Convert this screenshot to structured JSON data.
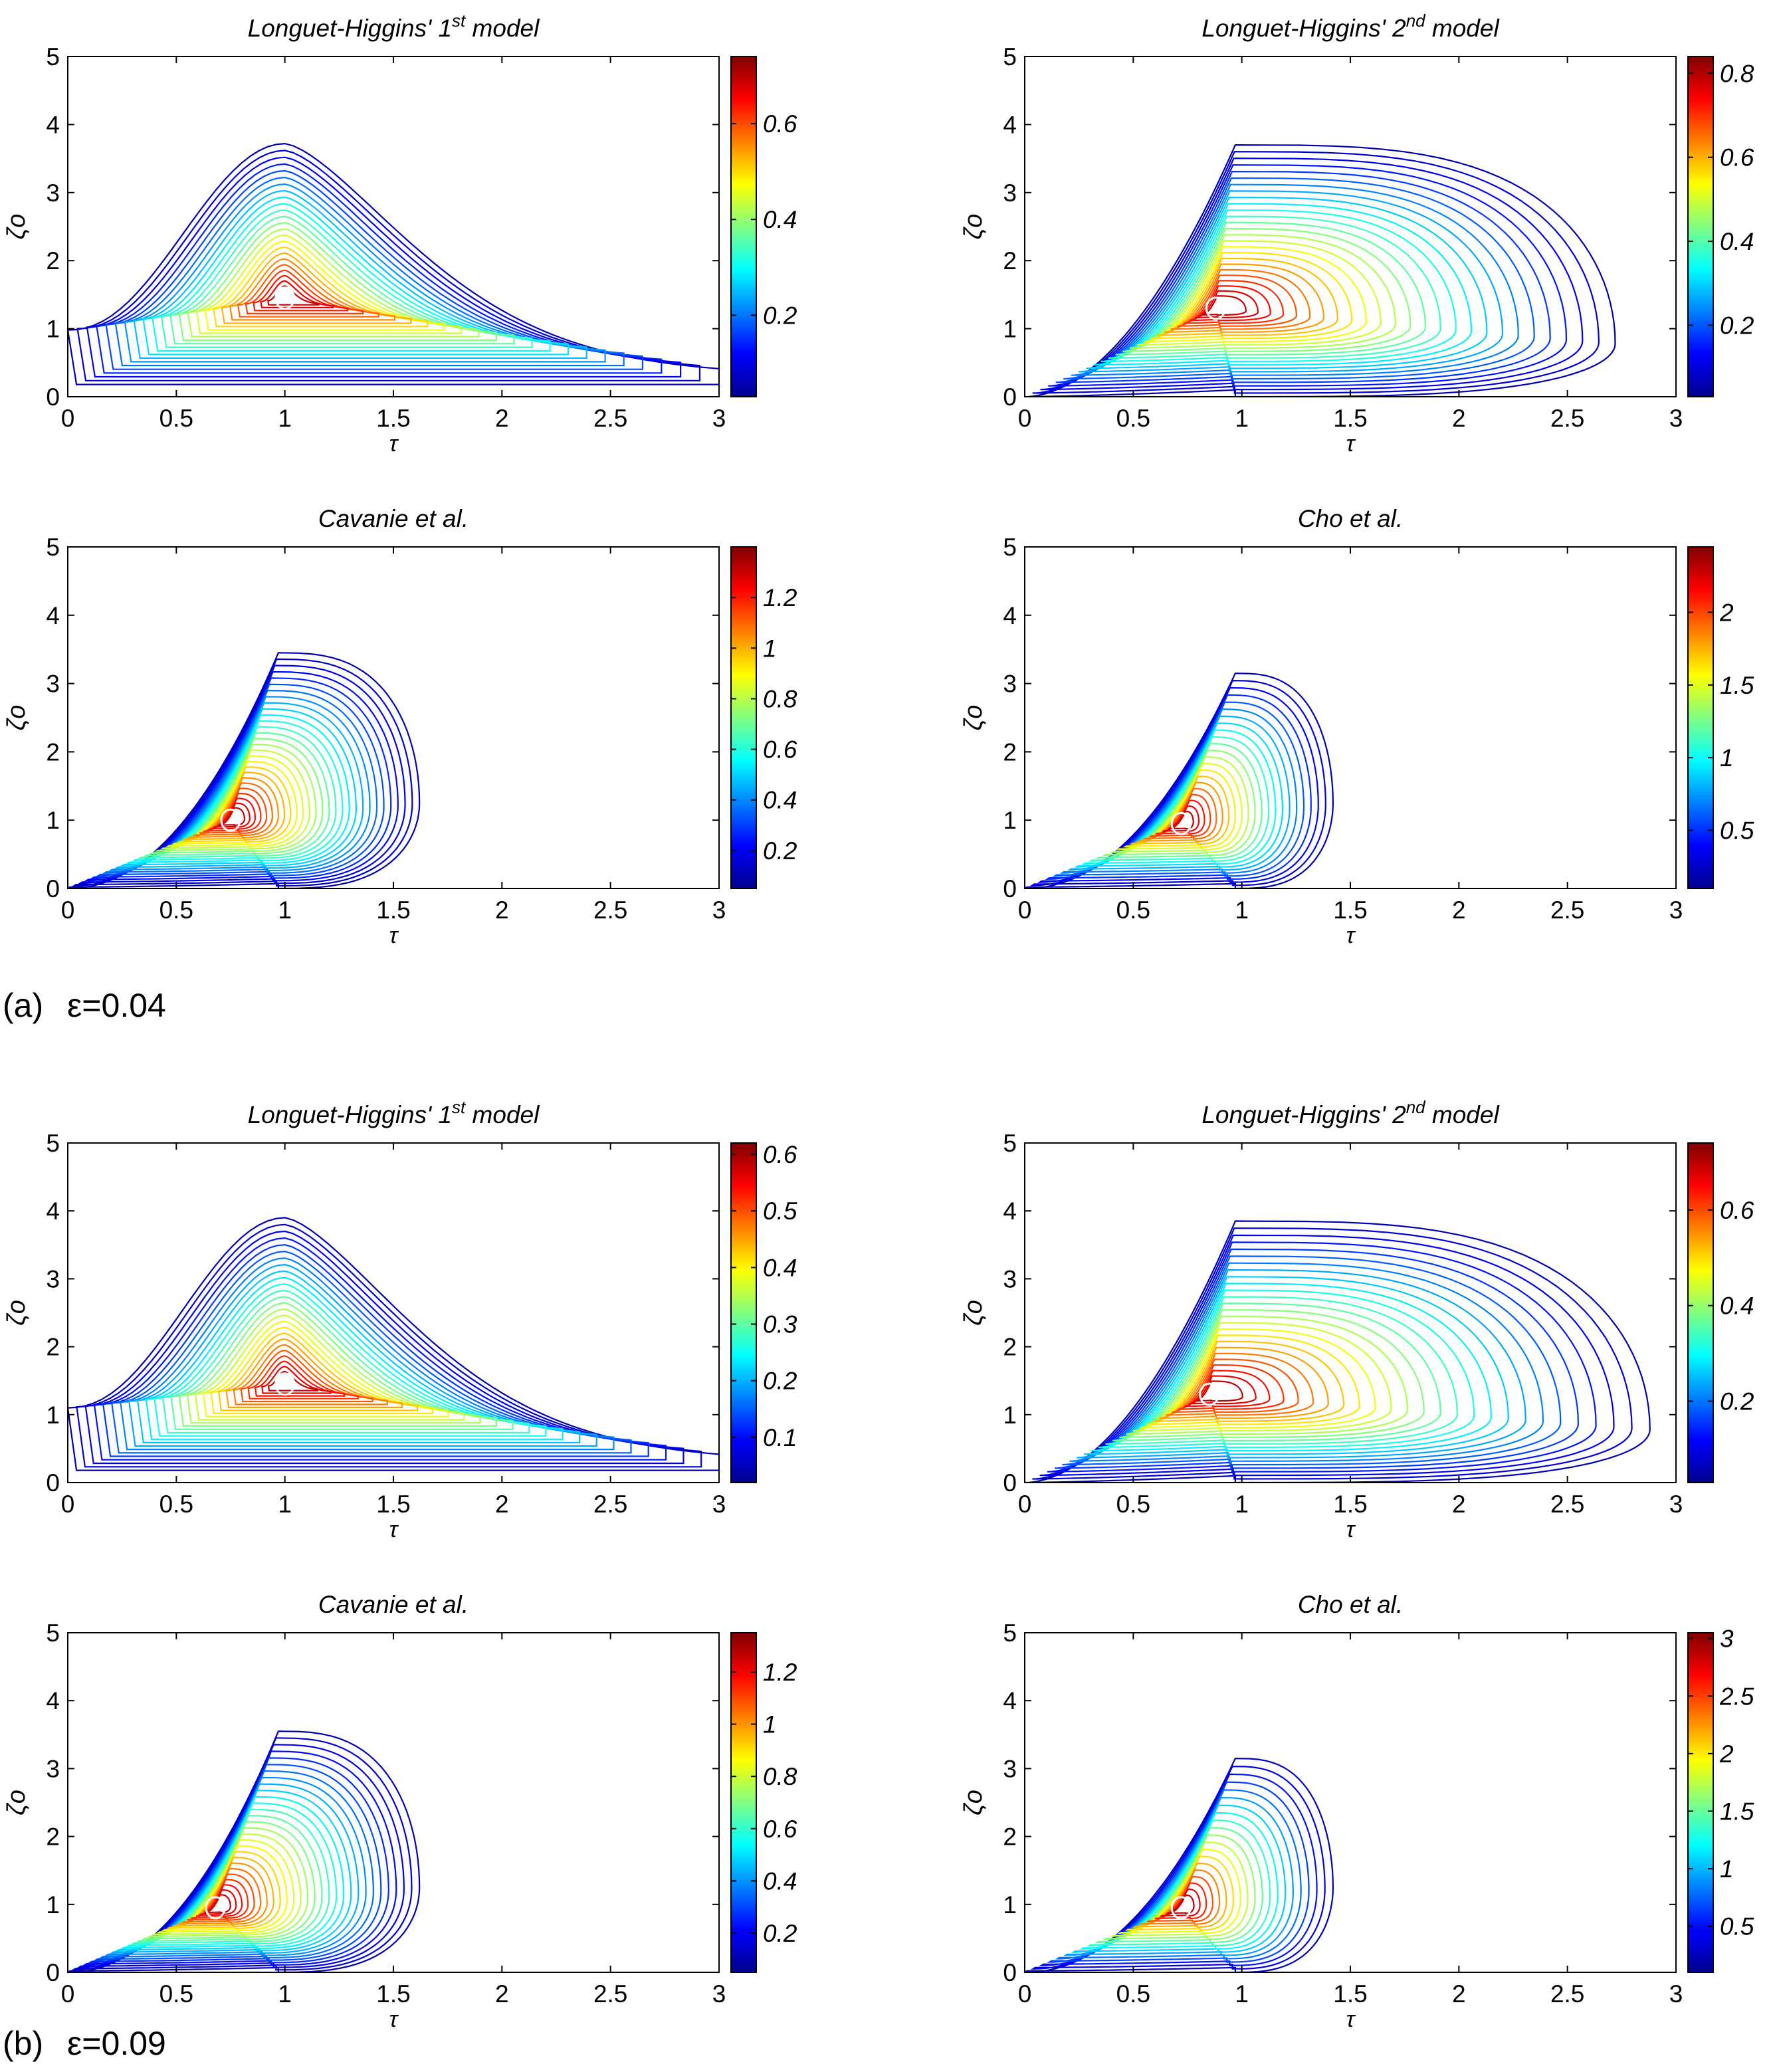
{
  "figure_captions": [
    {
      "label": "(a)",
      "epsilon": "ε=0.04"
    },
    {
      "label": "(b)",
      "epsilon": "ε=0.09"
    }
  ],
  "colormap": [
    "#00008f",
    "#0000ff",
    "#0080ff",
    "#00ffff",
    "#80ff80",
    "#ffff00",
    "#ff8000",
    "#ff0000",
    "#800000"
  ],
  "chart_data": [
    {
      "type": "contour",
      "group": "a",
      "title": "Longuet-Higgins' 1st model",
      "title_main": "Longuet-Higgins' 1",
      "title_sup": "st",
      "title_end": " model",
      "xlabel": "τ",
      "ylabel": "ζo",
      "xlim": [
        0,
        3
      ],
      "ylim": [
        0,
        5
      ],
      "xticks": [
        "0",
        "0.5",
        "1",
        "1.5",
        "2",
        "2.5",
        "3"
      ],
      "yticks": [
        "0",
        "1",
        "2",
        "3",
        "4",
        "5"
      ],
      "peak": [
        1.0,
        1.45
      ],
      "peak_value": 0.72,
      "n_levels": 24,
      "colorbar": {
        "min": 0.03,
        "max": 0.74,
        "ticks": [
          0.2,
          0.4,
          0.6
        ],
        "labels": [
          "0.2",
          "0.4",
          "0.6"
        ]
      }
    },
    {
      "type": "contour",
      "group": "a",
      "title": "Longuet-Higgins' 2nd model",
      "title_main": "Longuet-Higgins' 2",
      "title_sup": "nd",
      "title_end": " model",
      "xlabel": "τ",
      "ylabel": "ζo",
      "xlim": [
        0,
        3
      ],
      "ylim": [
        0,
        5
      ],
      "xticks": [
        "0",
        "0.5",
        "1",
        "1.5",
        "2",
        "2.5",
        "3"
      ],
      "yticks": [
        "0",
        "1",
        "2",
        "3",
        "4",
        "5"
      ],
      "peak": [
        0.88,
        1.3
      ],
      "peak_value": 0.82,
      "n_levels": 26,
      "colorbar": {
        "min": 0.03,
        "max": 0.84,
        "ticks": [
          0.2,
          0.4,
          0.6,
          0.8
        ],
        "labels": [
          "0.2",
          "0.4",
          "0.6",
          "0.8"
        ]
      }
    },
    {
      "type": "contour",
      "group": "a",
      "title": "Cavanie et al.",
      "title_main": "Cavanie et al.",
      "title_sup": "",
      "title_end": "",
      "xlabel": "τ",
      "ylabel": "ζo",
      "xlim": [
        0,
        3
      ],
      "ylim": [
        0,
        5
      ],
      "xticks": [
        "0",
        "0.5",
        "1",
        "1.5",
        "2",
        "2.5",
        "3"
      ],
      "yticks": [
        "0",
        "1",
        "2",
        "3",
        "4",
        "5"
      ],
      "peak": [
        0.75,
        1.0
      ],
      "peak_value": 1.35,
      "n_levels": 28,
      "colorbar": {
        "min": 0.05,
        "max": 1.4,
        "ticks": [
          0.2,
          0.4,
          0.6,
          0.8,
          1.0,
          1.2
        ],
        "labels": [
          "0.2",
          "0.4",
          "0.6",
          "0.8",
          "1",
          "1.2"
        ]
      }
    },
    {
      "type": "contour",
      "group": "a",
      "title": "Cho et al.",
      "title_main": "Cho et al.",
      "title_sup": "",
      "title_end": "",
      "xlabel": "τ",
      "ylabel": "ζo",
      "xlim": [
        0,
        3
      ],
      "ylim": [
        0,
        5
      ],
      "xticks": [
        "0",
        "0.5",
        "1",
        "1.5",
        "2",
        "2.5",
        "3"
      ],
      "yticks": [
        "0",
        "1",
        "2",
        "3",
        "4",
        "5"
      ],
      "peak": [
        0.72,
        0.95
      ],
      "peak_value": 2.4,
      "n_levels": 22,
      "colorbar": {
        "min": 0.1,
        "max": 2.45,
        "ticks": [
          0.5,
          1.0,
          1.5,
          2.0
        ],
        "labels": [
          "0.5",
          "1",
          "1.5",
          "2"
        ]
      }
    },
    {
      "type": "contour",
      "group": "b",
      "title": "Longuet-Higgins' 1st model",
      "title_main": "Longuet-Higgins' 1",
      "title_sup": "st",
      "title_end": " model",
      "xlabel": "τ",
      "ylabel": "ζo",
      "xlim": [
        0,
        3
      ],
      "ylim": [
        0,
        5
      ],
      "xticks": [
        "0",
        "0.5",
        "1",
        "1.5",
        "2",
        "2.5",
        "3"
      ],
      "yticks": [
        "0",
        "1",
        "2",
        "3",
        "4",
        "5"
      ],
      "peak": [
        1.0,
        1.45
      ],
      "peak_value": 0.6,
      "n_levels": 26,
      "colorbar": {
        "min": 0.02,
        "max": 0.62,
        "ticks": [
          0.1,
          0.2,
          0.3,
          0.4,
          0.5,
          0.6
        ],
        "labels": [
          "0.1",
          "0.2",
          "0.3",
          "0.4",
          "0.5",
          "0.6"
        ]
      }
    },
    {
      "type": "contour",
      "group": "b",
      "title": "Longuet-Higgins' 2nd model",
      "title_main": "Longuet-Higgins' 2",
      "title_sup": "nd",
      "title_end": " model",
      "xlabel": "τ",
      "ylabel": "ζo",
      "xlim": [
        0,
        3
      ],
      "ylim": [
        0,
        5
      ],
      "xticks": [
        "0",
        "0.5",
        "1",
        "1.5",
        "2",
        "2.5",
        "3"
      ],
      "yticks": [
        "0",
        "1",
        "2",
        "3",
        "4",
        "5"
      ],
      "peak": [
        0.85,
        1.3
      ],
      "peak_value": 0.72,
      "n_levels": 26,
      "colorbar": {
        "min": 0.03,
        "max": 0.74,
        "ticks": [
          0.2,
          0.4,
          0.6
        ],
        "labels": [
          "0.2",
          "0.4",
          "0.6"
        ]
      }
    },
    {
      "type": "contour",
      "group": "b",
      "title": "Cavanie et al.",
      "title_main": "Cavanie et al.",
      "title_sup": "",
      "title_end": "",
      "xlabel": "τ",
      "ylabel": "ζo",
      "xlim": [
        0,
        3
      ],
      "ylim": [
        0,
        5
      ],
      "xticks": [
        "0",
        "0.5",
        "1",
        "1.5",
        "2",
        "2.5",
        "3"
      ],
      "yticks": [
        "0",
        "1",
        "2",
        "3",
        "4",
        "5"
      ],
      "peak": [
        0.68,
        0.95
      ],
      "peak_value": 1.3,
      "n_levels": 28,
      "colorbar": {
        "min": 0.05,
        "max": 1.35,
        "ticks": [
          0.2,
          0.4,
          0.6,
          0.8,
          1.0,
          1.2
        ],
        "labels": [
          "0.2",
          "0.4",
          "0.6",
          "0.8",
          "1",
          "1.2"
        ]
      }
    },
    {
      "type": "contour",
      "group": "b",
      "title": "Cho et al.",
      "title_main": "Cho et al.",
      "title_sup": "",
      "title_end": "",
      "xlabel": "τ",
      "ylabel": "ζo",
      "xlim": [
        0,
        3
      ],
      "ylim": [
        0,
        5
      ],
      "xticks": [
        "0",
        "0.5",
        "1",
        "1.5",
        "2",
        "2.5",
        "3"
      ],
      "yticks": [
        "0",
        "1",
        "2",
        "3",
        "4",
        "5"
      ],
      "peak": [
        0.72,
        0.95
      ],
      "peak_value": 3.0,
      "n_levels": 20,
      "colorbar": {
        "min": 0.1,
        "max": 3.05,
        "ticks": [
          0.5,
          1.0,
          1.5,
          2.0,
          2.5,
          3.0
        ],
        "labels": [
          "0.5",
          "1",
          "1.5",
          "2",
          "2.5",
          "3"
        ]
      }
    }
  ]
}
